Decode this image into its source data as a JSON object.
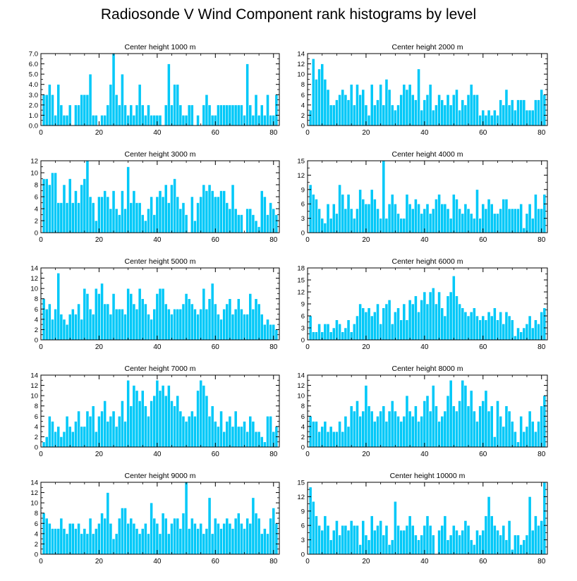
{
  "title": "Radiosonde V Wind Component rank histograms by level",
  "colors": {
    "bar": "#00c8f8",
    "bar_edge": "#ffffff",
    "axis": "#000000"
  },
  "chart_data": [
    {
      "type": "bar",
      "title": "Center height 1000 m",
      "xlabel": "",
      "ylabel": "",
      "xlim": [
        0,
        82
      ],
      "ylim": [
        0,
        7
      ],
      "x_ticks": [
        0,
        20,
        40,
        60,
        80
      ],
      "y_ticks": [
        0,
        1,
        2,
        3,
        4,
        5,
        6,
        7
      ],
      "y_tick_labels": [
        "0.0",
        "1.0",
        "2.0",
        "3.0",
        "4.0",
        "5.0",
        "6.0",
        "7.0"
      ],
      "values": [
        3,
        3,
        4,
        3,
        1,
        4,
        2,
        1,
        1,
        2,
        0,
        2,
        2,
        3,
        3,
        3,
        5,
        1,
        1,
        0,
        1,
        1,
        2,
        4,
        7,
        3,
        2,
        5,
        2,
        1,
        2,
        1,
        2,
        4,
        2,
        1,
        2,
        1,
        1,
        1,
        1,
        0,
        2,
        6,
        2,
        4,
        4,
        2,
        1,
        1,
        2,
        2,
        0,
        1,
        0,
        2,
        3,
        2,
        1,
        1,
        2,
        2,
        2,
        2,
        2,
        2,
        2,
        2,
        2,
        1,
        6,
        2,
        1,
        3,
        1,
        2,
        1,
        3,
        1,
        1,
        3
      ]
    },
    {
      "type": "bar",
      "title": "Center height 2000 m",
      "xlabel": "",
      "ylabel": "",
      "xlim": [
        0,
        82
      ],
      "ylim": [
        0,
        14
      ],
      "x_ticks": [
        0,
        20,
        40,
        60,
        80
      ],
      "y_ticks": [
        0,
        2,
        4,
        6,
        8,
        10,
        12,
        14
      ],
      "y_tick_labels": [
        "0",
        "2",
        "4",
        "6",
        "8",
        "10",
        "12",
        "14"
      ],
      "values": [
        3,
        13,
        9,
        11,
        12,
        9,
        7,
        4,
        4,
        5,
        6,
        7,
        6,
        5,
        8,
        4,
        8,
        6,
        7,
        4,
        2,
        8,
        4,
        5,
        8,
        4,
        9,
        7,
        4,
        3,
        4,
        6,
        8,
        7,
        8,
        6,
        5,
        11,
        3,
        5,
        6,
        8,
        3,
        4,
        6,
        5,
        4,
        6,
        4,
        6,
        7,
        3,
        5,
        4,
        6,
        8,
        6,
        6,
        2,
        3,
        2,
        3,
        2,
        3,
        2,
        5,
        4,
        7,
        4,
        5,
        3,
        5,
        5,
        5,
        3,
        3,
        3,
        5,
        5,
        7,
        6
      ]
    },
    {
      "type": "bar",
      "title": "Center height 3000 m",
      "xlabel": "",
      "ylabel": "",
      "xlim": [
        0,
        82
      ],
      "ylim": [
        0,
        12
      ],
      "x_ticks": [
        0,
        20,
        40,
        60,
        80
      ],
      "y_ticks": [
        0,
        2,
        4,
        6,
        8,
        10,
        12
      ],
      "y_tick_labels": [
        "0",
        "2",
        "4",
        "6",
        "8",
        "10",
        "12"
      ],
      "values": [
        9,
        9,
        8,
        10,
        10,
        5,
        5,
        8,
        5,
        9,
        5,
        7,
        5,
        8,
        9,
        12,
        6,
        5,
        2,
        6,
        6,
        7,
        6,
        4,
        7,
        4,
        3,
        7,
        4,
        11,
        5,
        7,
        5,
        5,
        3,
        2,
        4,
        6,
        3,
        6,
        7,
        6,
        8,
        5,
        8,
        9,
        6,
        4,
        5,
        3,
        0,
        6,
        2,
        5,
        6,
        8,
        7,
        8,
        7,
        6,
        6,
        7,
        7,
        5,
        4,
        8,
        4,
        3,
        3,
        0,
        4,
        4,
        3,
        2,
        1,
        7,
        6,
        3,
        5,
        4,
        3
      ]
    },
    {
      "type": "bar",
      "title": "Center height 4000 m",
      "xlabel": "",
      "ylabel": "",
      "xlim": [
        0,
        82
      ],
      "ylim": [
        0,
        15
      ],
      "x_ticks": [
        0,
        20,
        40,
        60,
        80
      ],
      "y_ticks": [
        0,
        3,
        6,
        9,
        12,
        15
      ],
      "y_tick_labels": [
        "0",
        "3",
        "6",
        "9",
        "12",
        "15"
      ],
      "values": [
        10,
        8,
        7,
        5,
        3,
        2,
        6,
        3,
        6,
        4,
        10,
        8,
        5,
        8,
        5,
        3,
        5,
        9,
        7,
        6,
        6,
        9,
        7,
        5,
        3,
        15,
        3,
        6,
        8,
        6,
        4,
        3,
        3,
        8,
        6,
        5,
        7,
        6,
        4,
        5,
        6,
        4,
        5,
        7,
        8,
        6,
        6,
        5,
        3,
        8,
        7,
        5,
        4,
        6,
        5,
        4,
        3,
        9,
        3,
        6,
        5,
        7,
        6,
        4,
        4,
        5,
        7,
        7,
        5,
        5,
        5,
        5,
        6,
        1,
        4,
        6,
        3,
        8,
        5,
        5,
        8
      ]
    },
    {
      "type": "bar",
      "title": "Center height 5000 m",
      "xlabel": "",
      "ylabel": "",
      "xlim": [
        0,
        82
      ],
      "ylim": [
        0,
        14
      ],
      "x_ticks": [
        0,
        20,
        40,
        60,
        80
      ],
      "y_ticks": [
        0,
        2,
        4,
        6,
        8,
        10,
        12,
        14
      ],
      "y_tick_labels": [
        "0",
        "2",
        "4",
        "6",
        "8",
        "10",
        "12",
        "14"
      ],
      "values": [
        8,
        6,
        7,
        4,
        6,
        13,
        5,
        4,
        3,
        5,
        6,
        5,
        7,
        4,
        10,
        9,
        6,
        5,
        10,
        9,
        11,
        7,
        7,
        5,
        9,
        6,
        6,
        6,
        5,
        10,
        9,
        7,
        6,
        10,
        8,
        7,
        5,
        4,
        6,
        9,
        10,
        10,
        7,
        6,
        5,
        6,
        6,
        6,
        7,
        9,
        8,
        7,
        6,
        5,
        6,
        10,
        6,
        8,
        11,
        7,
        5,
        4,
        6,
        7,
        8,
        5,
        6,
        8,
        6,
        5,
        5,
        9,
        6,
        8,
        7,
        5,
        3,
        4,
        3,
        3,
        2
      ]
    },
    {
      "type": "bar",
      "title": "Center height 6000 m",
      "xlabel": "",
      "ylabel": "",
      "xlim": [
        0,
        82
      ],
      "ylim": [
        0,
        18
      ],
      "x_ticks": [
        0,
        20,
        40,
        60,
        80
      ],
      "y_ticks": [
        0,
        3,
        6,
        9,
        12,
        15,
        18
      ],
      "y_tick_labels": [
        "0",
        "3",
        "6",
        "9",
        "12",
        "15",
        "18"
      ],
      "values": [
        6,
        2,
        2,
        4,
        2,
        4,
        4,
        2,
        3,
        5,
        4,
        2,
        3,
        5,
        2,
        4,
        6,
        9,
        8,
        7,
        8,
        6,
        7,
        9,
        4,
        8,
        9,
        10,
        4,
        7,
        8,
        5,
        9,
        5,
        10,
        9,
        11,
        7,
        10,
        12,
        9,
        12,
        13,
        9,
        12,
        8,
        6,
        11,
        12,
        16,
        11,
        9,
        8,
        7,
        6,
        7,
        8,
        6,
        5,
        6,
        5,
        7,
        6,
        8,
        5,
        7,
        4,
        7,
        6,
        5,
        1,
        3,
        2,
        3,
        4,
        6,
        3,
        5,
        4,
        7,
        8
      ]
    },
    {
      "type": "bar",
      "title": "Center height 7000 m",
      "xlabel": "",
      "ylabel": "",
      "xlim": [
        0,
        82
      ],
      "ylim": [
        0,
        14
      ],
      "x_ticks": [
        0,
        20,
        40,
        60,
        80
      ],
      "y_ticks": [
        0,
        2,
        4,
        6,
        8,
        10,
        12,
        14
      ],
      "y_tick_labels": [
        "0",
        "2",
        "4",
        "6",
        "8",
        "10",
        "12",
        "14"
      ],
      "values": [
        1,
        2,
        6,
        5,
        3,
        4,
        2,
        3,
        6,
        4,
        3,
        5,
        7,
        4,
        4,
        7,
        6,
        8,
        3,
        6,
        7,
        9,
        5,
        6,
        7,
        4,
        6,
        9,
        5,
        13,
        8,
        12,
        11,
        9,
        11,
        8,
        6,
        9,
        10,
        13,
        11,
        12,
        10,
        12,
        9,
        8,
        10,
        7,
        6,
        5,
        6,
        7,
        6,
        11,
        13,
        12,
        10,
        6,
        8,
        5,
        4,
        7,
        3,
        5,
        6,
        4,
        7,
        4,
        4,
        5,
        3,
        6,
        5,
        3,
        3,
        2,
        1,
        6,
        6,
        3,
        4
      ]
    },
    {
      "type": "bar",
      "title": "Center height 8000 m",
      "xlabel": "",
      "ylabel": "",
      "xlim": [
        0,
        82
      ],
      "ylim": [
        0,
        14
      ],
      "x_ticks": [
        0,
        20,
        40,
        60,
        80
      ],
      "y_ticks": [
        0,
        2,
        4,
        6,
        8,
        10,
        12,
        14
      ],
      "y_tick_labels": [
        "0",
        "2",
        "4",
        "6",
        "8",
        "10",
        "12",
        "14"
      ],
      "values": [
        6,
        5,
        5,
        3,
        4,
        5,
        3,
        4,
        3,
        3,
        5,
        3,
        6,
        4,
        8,
        7,
        9,
        6,
        7,
        12,
        8,
        7,
        5,
        6,
        7,
        8,
        5,
        7,
        9,
        7,
        6,
        5,
        6,
        10,
        7,
        6,
        8,
        5,
        6,
        9,
        10,
        7,
        12,
        8,
        5,
        6,
        7,
        10,
        13,
        8,
        7,
        9,
        13,
        12,
        8,
        11,
        7,
        5,
        8,
        9,
        11,
        7,
        8,
        2,
        9,
        6,
        4,
        8,
        7,
        5,
        3,
        1,
        6,
        3,
        4,
        7,
        5,
        3,
        5,
        8,
        10
      ]
    },
    {
      "type": "bar",
      "title": "Center height 9000 m",
      "xlabel": "",
      "ylabel": "",
      "xlim": [
        0,
        82
      ],
      "ylim": [
        0,
        14
      ],
      "x_ticks": [
        0,
        20,
        40,
        60,
        80
      ],
      "y_ticks": [
        0,
        2,
        4,
        6,
        8,
        10,
        12,
        14
      ],
      "y_tick_labels": [
        "0",
        "2",
        "4",
        "6",
        "8",
        "10",
        "12",
        "14"
      ],
      "values": [
        8,
        7,
        6,
        5,
        5,
        5,
        7,
        5,
        4,
        6,
        6,
        5,
        6,
        4,
        5,
        4,
        7,
        4,
        5,
        6,
        8,
        7,
        12,
        6,
        3,
        4,
        7,
        9,
        9,
        6,
        7,
        6,
        5,
        4,
        5,
        6,
        4,
        10,
        7,
        6,
        4,
        8,
        7,
        4,
        6,
        7,
        7,
        5,
        8,
        14,
        5,
        7,
        6,
        5,
        6,
        4,
        5,
        11,
        4,
        7,
        6,
        5,
        6,
        7,
        6,
        5,
        7,
        8,
        6,
        5,
        7,
        6,
        11,
        8,
        7,
        4,
        5,
        4,
        7,
        9,
        6
      ]
    },
    {
      "type": "bar",
      "title": "Center height 10000 m",
      "xlabel": "",
      "ylabel": "",
      "xlim": [
        0,
        82
      ],
      "ylim": [
        0,
        15
      ],
      "x_ticks": [
        0,
        20,
        40,
        60,
        80
      ],
      "y_ticks": [
        0,
        3,
        6,
        9,
        12,
        15
      ],
      "y_tick_labels": [
        "0",
        "3",
        "6",
        "9",
        "12",
        "15"
      ],
      "values": [
        14,
        11,
        8,
        6,
        5,
        8,
        6,
        3,
        5,
        7,
        4,
        6,
        6,
        5,
        7,
        6,
        6,
        2,
        7,
        4,
        3,
        8,
        5,
        6,
        7,
        4,
        6,
        2,
        3,
        11,
        6,
        5,
        5,
        6,
        8,
        6,
        4,
        3,
        4,
        6,
        8,
        6,
        4,
        0,
        5,
        6,
        8,
        3,
        4,
        6,
        5,
        4,
        5,
        7,
        6,
        3,
        2,
        5,
        4,
        5,
        8,
        12,
        8,
        6,
        5,
        4,
        6,
        3,
        7,
        1,
        4,
        4,
        2,
        3,
        4,
        12,
        5,
        8,
        6,
        7,
        15
      ]
    }
  ]
}
